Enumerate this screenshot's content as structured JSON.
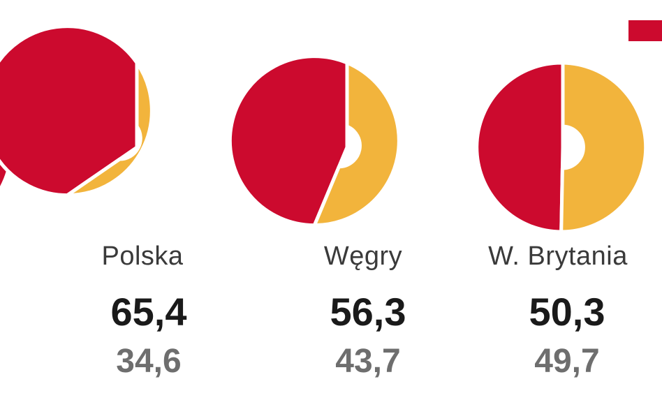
{
  "colors": {
    "primary": "#cc0a2e",
    "secondary": "#f2b43c",
    "text_dark": "#1a1a1a",
    "text_muted": "#6e6e6e"
  },
  "chart_data": {
    "type": "pie",
    "categories": [
      "Polska",
      "Węgry",
      "W. Brytania"
    ],
    "series": [
      {
        "values": [
          65.4,
          56.3,
          50.3
        ],
        "color": "#cc0a2e"
      },
      {
        "values": [
          34.6,
          43.7,
          49.7
        ],
        "color": "#f2b43c"
      }
    ],
    "labels": {
      "primary": [
        "65,4",
        "56,3",
        "50,3"
      ],
      "secondary": [
        "34,6",
        "43,7",
        "49,7"
      ]
    },
    "legend": "top-right"
  }
}
